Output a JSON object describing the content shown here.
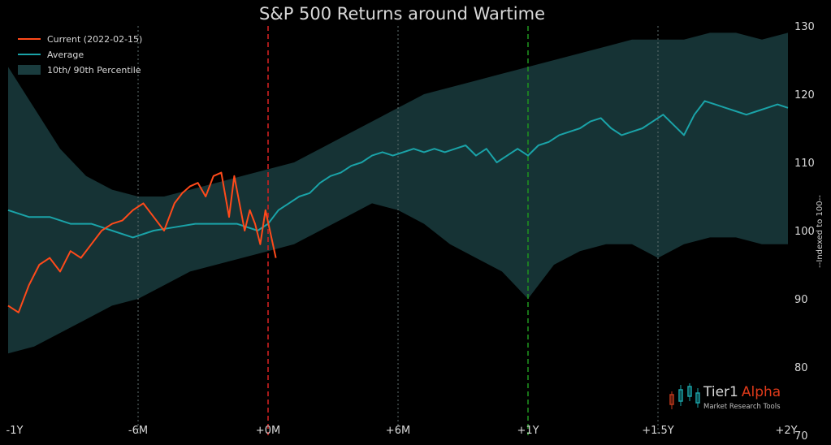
{
  "chart_data": {
    "type": "line",
    "title": "S&P 500 Returns around Wartime",
    "ylabel": "--Indexed to 100--",
    "xlabel": "",
    "xlim": [
      -1,
      2
    ],
    "ylim": [
      70,
      130
    ],
    "x_ticks": [
      {
        "value": -1,
        "label": "-1Y"
      },
      {
        "value": -0.5,
        "label": "-6M"
      },
      {
        "value": 0,
        "label": "+0M"
      },
      {
        "value": 0.5,
        "label": "+6M"
      },
      {
        "value": 1,
        "label": "+1Y"
      },
      {
        "value": 1.5,
        "label": "+1.5Y"
      },
      {
        "value": 2,
        "label": "+2Y"
      }
    ],
    "y_ticks": [
      70,
      80,
      90,
      100,
      110,
      120,
      130
    ],
    "grid": false,
    "legend_position": "top-left",
    "vlines": [
      {
        "x": -0.5,
        "color": "#5f6f6f",
        "style": "dotted"
      },
      {
        "x": 0,
        "color": "#d02020",
        "style": "dashed"
      },
      {
        "x": 0.5,
        "color": "#5f6f6f",
        "style": "dotted"
      },
      {
        "x": 1,
        "color": "#1f8f1f",
        "style": "dashed"
      },
      {
        "x": 1.5,
        "color": "#5f6f6f",
        "style": "dotted"
      }
    ],
    "series": [
      {
        "name": "Current (2022-02-15)",
        "color": "#ff4a1a",
        "x": [
          -1,
          -0.96,
          -0.92,
          -0.88,
          -0.84,
          -0.8,
          -0.76,
          -0.72,
          -0.68,
          -0.64,
          -0.6,
          -0.56,
          -0.52,
          -0.48,
          -0.44,
          -0.4,
          -0.36,
          -0.33,
          -0.3,
          -0.27,
          -0.24,
          -0.21,
          -0.18,
          -0.15,
          -0.13,
          -0.11,
          -0.09,
          -0.07,
          -0.05,
          -0.03,
          -0.01,
          0.03
        ],
        "y": [
          89,
          88,
          92,
          95,
          96,
          94,
          97,
          96,
          98,
          100,
          101,
          101.5,
          103,
          104,
          102,
          100,
          104,
          105.5,
          106.5,
          107,
          105,
          108,
          108.5,
          102,
          108,
          104,
          100,
          103,
          101,
          98,
          103,
          96
        ]
      },
      {
        "name": "Average",
        "color": "#1aa3a8",
        "x": [
          -1,
          -0.92,
          -0.84,
          -0.76,
          -0.68,
          -0.6,
          -0.52,
          -0.44,
          -0.36,
          -0.28,
          -0.2,
          -0.12,
          -0.04,
          0,
          0.04,
          0.08,
          0.12,
          0.16,
          0.2,
          0.24,
          0.28,
          0.32,
          0.36,
          0.4,
          0.44,
          0.48,
          0.52,
          0.56,
          0.6,
          0.64,
          0.68,
          0.72,
          0.76,
          0.8,
          0.84,
          0.88,
          0.92,
          0.96,
          1,
          1.04,
          1.08,
          1.12,
          1.16,
          1.2,
          1.24,
          1.28,
          1.32,
          1.36,
          1.4,
          1.44,
          1.48,
          1.52,
          1.56,
          1.6,
          1.64,
          1.68,
          1.72,
          1.76,
          1.8,
          1.84,
          1.88,
          1.92,
          1.96,
          2
        ],
        "y": [
          103,
          102,
          102,
          101,
          101,
          100,
          99,
          100,
          100.5,
          101,
          101,
          101,
          100,
          101,
          103,
          104,
          105,
          105.5,
          107,
          108,
          108.5,
          109.5,
          110,
          111,
          111.5,
          111,
          111.5,
          112,
          111.5,
          112,
          111.5,
          112,
          112.5,
          111,
          112,
          110,
          111,
          112,
          111,
          112.5,
          113,
          114,
          114.5,
          115,
          116,
          116.5,
          115,
          114,
          114.5,
          115,
          116,
          117,
          115.5,
          114,
          117,
          119,
          118.5,
          118,
          117.5,
          117,
          117.5,
          118,
          118.5,
          118
        ]
      }
    ],
    "band": {
      "name": "10th/ 90th Percentile",
      "color": "#1a3c3e",
      "x": [
        -1,
        -0.9,
        -0.8,
        -0.7,
        -0.6,
        -0.5,
        -0.4,
        -0.3,
        -0.2,
        -0.1,
        0,
        0.1,
        0.2,
        0.3,
        0.4,
        0.5,
        0.6,
        0.7,
        0.8,
        0.9,
        1,
        1.1,
        1.2,
        1.3,
        1.4,
        1.5,
        1.6,
        1.7,
        1.8,
        1.9,
        2
      ],
      "low": [
        82,
        83,
        85,
        87,
        89,
        90,
        92,
        94,
        95,
        96,
        97,
        98,
        100,
        102,
        104,
        103,
        101,
        98,
        96,
        94,
        90,
        95,
        97,
        98,
        98,
        96,
        98,
        99,
        99,
        98,
        98
      ],
      "high": [
        124,
        118,
        112,
        108,
        106,
        105,
        105,
        106,
        107,
        108,
        109,
        110,
        112,
        114,
        116,
        118,
        120,
        121,
        122,
        123,
        124,
        125,
        126,
        127,
        128,
        128,
        128,
        129,
        129,
        128,
        129
      ]
    }
  },
  "legend": {
    "current_label": "Current (2022-02-15)",
    "average_label": "Average",
    "band_label": "10th/ 90th Percentile"
  },
  "brand": {
    "name_part1": "Tier1",
    "name_part2": "Alpha",
    "tagline": "Market Research Tools"
  },
  "colors": {
    "background": "#000000",
    "text": "#d8d8d8",
    "current": "#ff4a1a",
    "average": "#1aa3a8",
    "band": "#1a3c3e",
    "brand_accent": "#e03a1a"
  }
}
